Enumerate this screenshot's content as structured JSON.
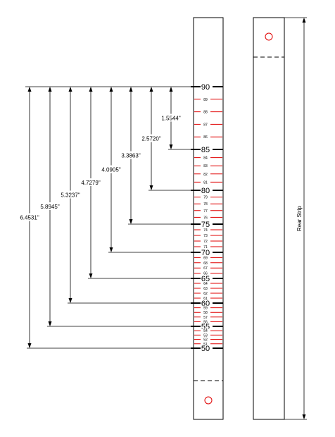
{
  "front_strip": {
    "scale_start": 90,
    "scale_end": 50,
    "major_labels": [
      "90",
      "85",
      "80",
      "75",
      "70",
      "65",
      "60",
      "55",
      "50"
    ],
    "minor_labels": {
      "89": "89",
      "88": "88",
      "87": "87",
      "86": "86",
      "84": "84",
      "83": "83",
      "82": "82",
      "81": "81",
      "79": "79",
      "78": "78",
      "77": "77",
      "76": "76",
      "74": "74",
      "73": "73",
      "72": "72",
      "71": "71",
      "69": "69",
      "68": "68",
      "67": "67",
      "66": "66",
      "64": "64",
      "63": "63",
      "62": "62",
      "61": "61",
      "59": "59",
      "58": "58",
      "57": "57",
      "56": "56",
      "54": "54",
      "53": "53",
      "52": "52",
      "51": "51"
    }
  },
  "dimensions": [
    {
      "target": 85,
      "label": "1.5544\""
    },
    {
      "target": 80,
      "label": "2.5720\""
    },
    {
      "target": 75,
      "label": "3.3863\""
    },
    {
      "target": 70,
      "label": "4.0905\""
    },
    {
      "target": 65,
      "label": "4.7279\""
    },
    {
      "target": 60,
      "label": "5.3237\""
    },
    {
      "target": 55,
      "label": "5.8945\""
    },
    {
      "target": 50,
      "label": "6.4531\""
    }
  ],
  "rear_strip": {
    "label": "Rear Strip"
  },
  "colors": {
    "minor_tick": "#e00000",
    "hole": "#e00000",
    "ink": "#000000"
  }
}
